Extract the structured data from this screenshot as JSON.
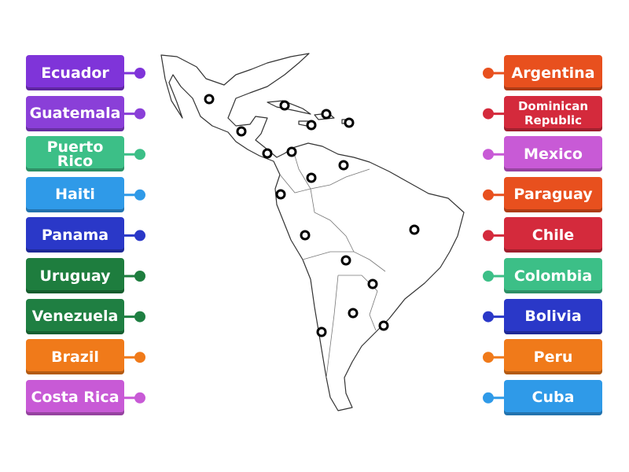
{
  "left_labels": [
    {
      "text": "Ecuador",
      "color": "#7f34d9"
    },
    {
      "text": "Guatemala",
      "color": "#8a3fd8"
    },
    {
      "text": "Puerto Rico",
      "color": "#3cbf87"
    },
    {
      "text": "Haiti",
      "color": "#2f9ae8"
    },
    {
      "text": "Panama",
      "color": "#2a38c8"
    },
    {
      "text": "Uruguay",
      "color": "#1e7d3e"
    },
    {
      "text": "Venezuela",
      "color": "#1f7f42"
    },
    {
      "text": "Brazil",
      "color": "#f07a1a"
    },
    {
      "text": "Costa Rica",
      "color": "#c85ad6"
    }
  ],
  "right_labels": [
    {
      "text": "Argentina",
      "color": "#e8501e"
    },
    {
      "text": "Dominican Republic",
      "color": "#d42a3c"
    },
    {
      "text": "Mexico",
      "color": "#c85ad6"
    },
    {
      "text": "Paraguay",
      "color": "#e8501e"
    },
    {
      "text": "Chile",
      "color": "#d42a3c"
    },
    {
      "text": "Colombia",
      "color": "#3cbf87"
    },
    {
      "text": "Bolivia",
      "color": "#2a38c8"
    },
    {
      "text": "Peru",
      "color": "#f07a1a"
    },
    {
      "text": "Cuba",
      "color": "#2f9ae8"
    }
  ]
}
